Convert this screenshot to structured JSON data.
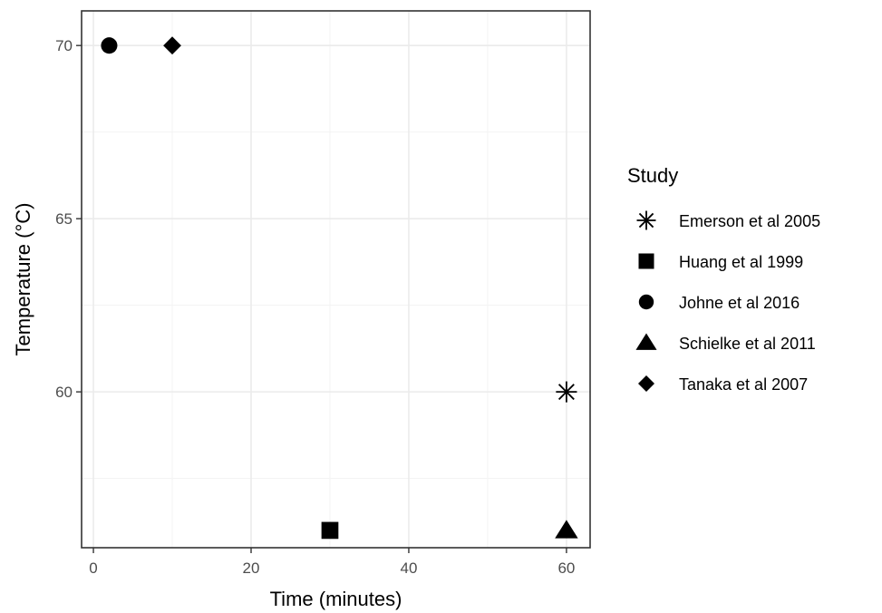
{
  "chart_data": {
    "type": "scatter",
    "title": "",
    "xlabel": "Time (minutes)",
    "ylabel": "Temperature (°C)",
    "xlim": [
      -1.5,
      63
    ],
    "ylim": [
      55.5,
      71
    ],
    "x_ticks": [
      0,
      20,
      40,
      60
    ],
    "x_minor_ticks": [
      10,
      30,
      50
    ],
    "y_ticks": [
      60,
      65,
      70
    ],
    "y_minor_ticks": [
      57.5,
      62.5,
      67.5
    ],
    "grid": true,
    "legend": {
      "title": "Study",
      "position": "right"
    },
    "series": [
      {
        "name": "Emerson et al 2005",
        "shape": "asterisk",
        "points": [
          {
            "x": 60,
            "y": 60
          }
        ]
      },
      {
        "name": "Huang et al 1999",
        "shape": "square",
        "points": [
          {
            "x": 30,
            "y": 56
          }
        ]
      },
      {
        "name": "Johne et al 2016",
        "shape": "circle",
        "points": [
          {
            "x": 2,
            "y": 70
          }
        ]
      },
      {
        "name": "Schielke et al 2011",
        "shape": "triangle",
        "points": [
          {
            "x": 60,
            "y": 56
          }
        ]
      },
      {
        "name": "Tanaka et al 2007",
        "shape": "diamond",
        "points": [
          {
            "x": 10,
            "y": 70
          }
        ]
      }
    ],
    "colors": {
      "marker": "#000000",
      "panel_border": "#333333",
      "grid": "#ebebeb",
      "tick_text": "#4d4d4d"
    }
  }
}
